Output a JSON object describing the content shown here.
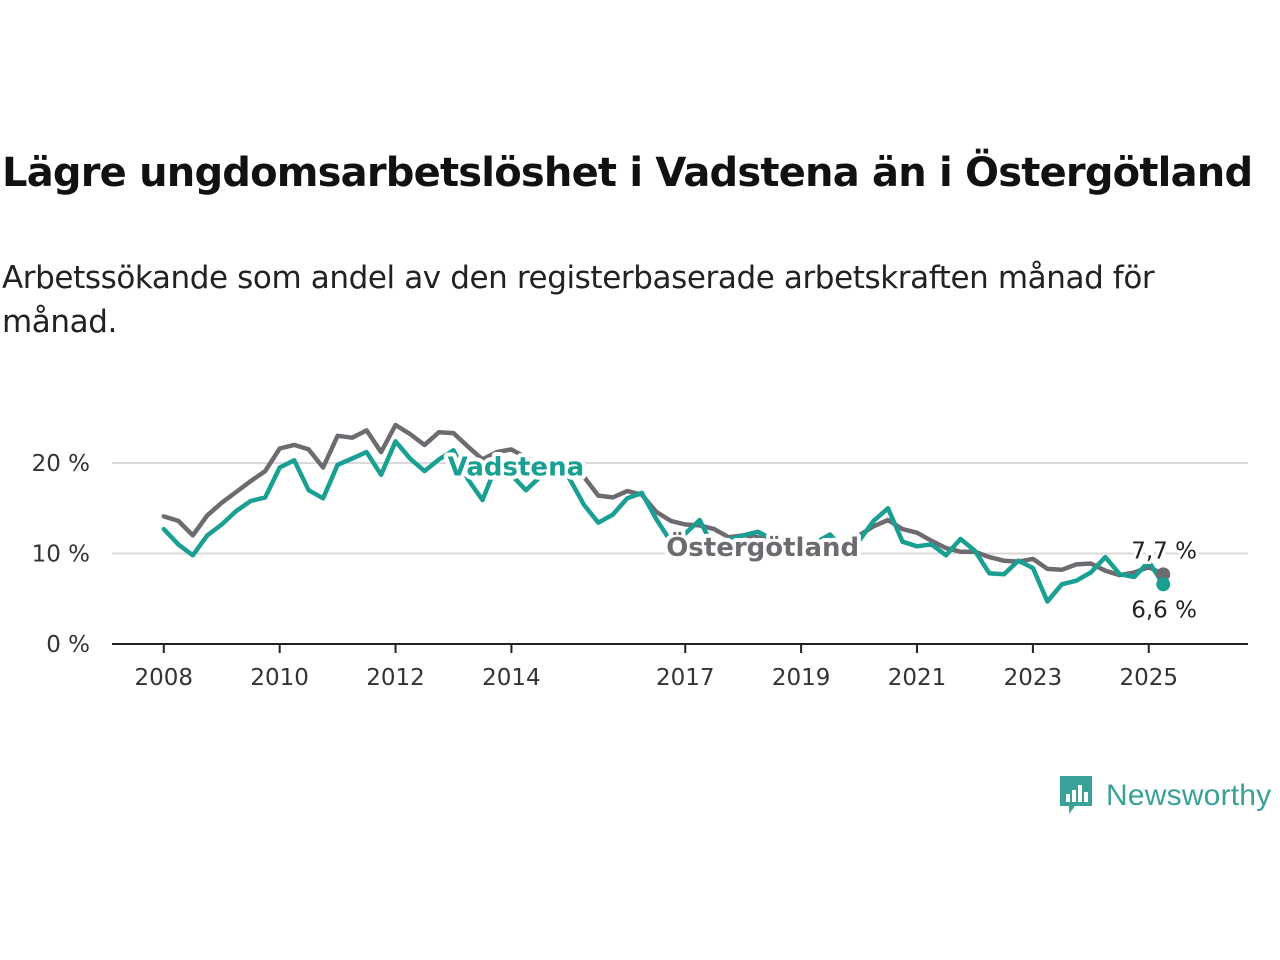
{
  "title": "Lägre ungdomsarbetslöshet i Vadstena än i Östergötland",
  "subtitle": "Arbetssökande som andel av den registerbaserade arbetskraften månad för månad.",
  "brand": {
    "name": "Newsworthy",
    "icon": "newsworthy-logo-icon",
    "color": "#3aa198"
  },
  "chart_data": {
    "type": "line",
    "title": "Lägre ungdomsarbetslöshet i Vadstena än i Östergötland",
    "subtitle": "Arbetssökande som andel av den registerbaserade arbetskraften månad för månad.",
    "xlabel": "",
    "ylabel": "",
    "x_ticks": [
      "2008",
      "2010",
      "2012",
      "2014",
      "2017",
      "2019",
      "2021",
      "2023",
      "2025"
    ],
    "y_ticks": [
      "0 %",
      "10 %",
      "20 %"
    ],
    "ylim": [
      0,
      26
    ],
    "grid": "horizontal",
    "x": [
      "2008-01",
      "2008-04",
      "2008-07",
      "2008-10",
      "2009-01",
      "2009-04",
      "2009-07",
      "2009-10",
      "2010-01",
      "2010-04",
      "2010-07",
      "2010-10",
      "2011-01",
      "2011-04",
      "2011-07",
      "2011-10",
      "2012-01",
      "2012-04",
      "2012-07",
      "2012-10",
      "2013-01",
      "2013-04",
      "2013-07",
      "2013-10",
      "2014-01",
      "2014-04",
      "2014-07",
      "2014-10",
      "2015-01",
      "2015-04",
      "2015-07",
      "2015-10",
      "2016-01",
      "2016-04",
      "2016-07",
      "2016-10",
      "2017-01",
      "2017-04",
      "2017-07",
      "2017-10",
      "2018-01",
      "2018-04",
      "2018-07",
      "2018-10",
      "2019-01",
      "2019-04",
      "2019-07",
      "2019-10",
      "2020-01",
      "2020-04",
      "2020-07",
      "2020-10",
      "2021-01",
      "2021-04",
      "2021-07",
      "2021-10",
      "2022-01",
      "2022-04",
      "2022-07",
      "2022-10",
      "2023-01",
      "2023-04",
      "2023-07",
      "2023-10",
      "2024-01",
      "2024-04",
      "2024-07",
      "2024-10",
      "2025-01",
      "2025-04"
    ],
    "series": [
      {
        "name": "Östergötland",
        "color": "#6d6b70",
        "last_label": "7,7 %",
        "values": [
          14.1,
          13.6,
          12.0,
          14.2,
          15.6,
          16.8,
          18.0,
          19.1,
          21.6,
          22.0,
          21.5,
          19.5,
          23.0,
          22.8,
          23.6,
          21.2,
          24.2,
          23.2,
          22.0,
          23.4,
          23.3,
          21.8,
          20.4,
          21.2,
          21.5,
          20.6,
          19.8,
          20.1,
          19.7,
          18.5,
          16.4,
          16.2,
          16.9,
          16.5,
          14.6,
          13.6,
          13.2,
          13.1,
          12.7,
          11.8,
          12.0,
          11.8,
          11.2,
          11.1,
          11.2,
          11.3,
          11.5,
          11.0,
          12.0,
          13.0,
          13.7,
          12.7,
          12.3,
          11.4,
          10.6,
          10.2,
          10.2,
          9.6,
          9.2,
          9.1,
          9.4,
          8.3,
          8.2,
          8.8,
          8.9,
          8.1,
          7.6,
          7.9,
          8.5,
          7.7
        ]
      },
      {
        "name": "Vadstena",
        "color": "#1a9f93",
        "last_label": "6,6 %",
        "values": [
          12.7,
          11.0,
          9.8,
          12.0,
          13.2,
          14.7,
          15.8,
          16.2,
          19.5,
          20.3,
          17.0,
          16.1,
          19.8,
          20.5,
          21.2,
          18.7,
          22.4,
          20.5,
          19.1,
          20.4,
          21.4,
          18.2,
          15.9,
          19.9,
          18.7,
          17.0,
          18.5,
          20.1,
          18.3,
          15.4,
          13.4,
          14.3,
          16.1,
          16.7,
          13.8,
          11.3,
          12.2,
          13.7,
          10.5,
          11.5,
          12.0,
          12.4,
          11.6,
          11.0,
          10.9,
          11.2,
          12.1,
          10.3,
          11.4,
          13.6,
          15.0,
          11.3,
          10.8,
          11.0,
          9.8,
          11.6,
          10.3,
          7.8,
          7.7,
          9.2,
          8.4,
          4.7,
          6.6,
          7.0,
          7.9,
          9.6,
          7.7,
          7.4,
          9.1,
          6.6
        ]
      }
    ],
    "annotations": [
      {
        "text": "Vadstena",
        "series": "Vadstena"
      },
      {
        "text": "Östergötland",
        "series": "Östergötland"
      }
    ]
  }
}
